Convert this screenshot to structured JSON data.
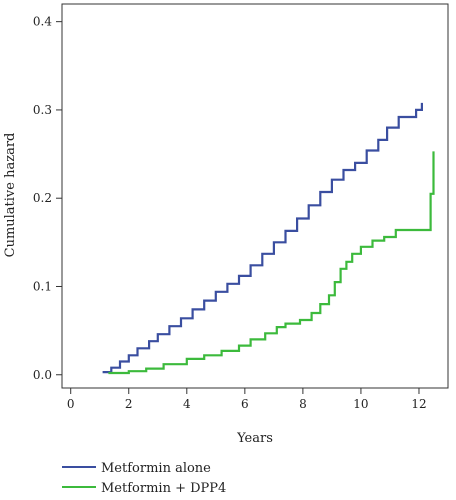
{
  "chart_data": {
    "type": "line",
    "title": "",
    "xlabel": "Years",
    "ylabel": "Cumulative hazard",
    "xlim": [
      -0.3,
      13
    ],
    "ylim": [
      -0.015,
      0.42
    ],
    "xticks": [
      0,
      2,
      4,
      6,
      8,
      10,
      12
    ],
    "yticks": [
      0.0,
      0.1,
      0.2,
      0.3,
      0.4
    ],
    "ytick_labels": [
      "0.0",
      "0.1",
      "0.2",
      "0.3",
      "0.4"
    ],
    "grid": false,
    "legend_position": "bottom",
    "series": [
      {
        "name": "Metformin alone",
        "color": "#3a4ea0",
        "step": true,
        "x": [
          1.1,
          1.4,
          1.7,
          2.0,
          2.3,
          2.7,
          3.0,
          3.4,
          3.8,
          4.2,
          4.6,
          5.0,
          5.4,
          5.8,
          6.2,
          6.6,
          7.0,
          7.4,
          7.8,
          8.2,
          8.6,
          9.0,
          9.4,
          9.8,
          10.2,
          10.6,
          10.9,
          11.3,
          11.9,
          12.1
        ],
        "values": [
          0.003,
          0.008,
          0.015,
          0.022,
          0.03,
          0.038,
          0.046,
          0.055,
          0.064,
          0.074,
          0.084,
          0.094,
          0.103,
          0.112,
          0.124,
          0.137,
          0.15,
          0.163,
          0.177,
          0.192,
          0.207,
          0.221,
          0.232,
          0.24,
          0.254,
          0.266,
          0.28,
          0.292,
          0.3,
          0.308
        ]
      },
      {
        "name": "Metformin + DPP4",
        "color": "#3cba3c",
        "step": true,
        "x": [
          1.3,
          2.0,
          2.6,
          3.2,
          4.0,
          4.6,
          5.2,
          5.8,
          6.2,
          6.7,
          7.1,
          7.4,
          7.9,
          8.3,
          8.6,
          8.9,
          9.1,
          9.3,
          9.5,
          9.7,
          10.0,
          10.4,
          10.8,
          11.2,
          12.1,
          12.4,
          12.5
        ],
        "values": [
          0.002,
          0.004,
          0.007,
          0.012,
          0.018,
          0.022,
          0.027,
          0.033,
          0.04,
          0.047,
          0.054,
          0.058,
          0.062,
          0.07,
          0.08,
          0.09,
          0.105,
          0.12,
          0.128,
          0.137,
          0.145,
          0.152,
          0.156,
          0.164,
          0.164,
          0.205,
          0.253
        ]
      }
    ]
  }
}
